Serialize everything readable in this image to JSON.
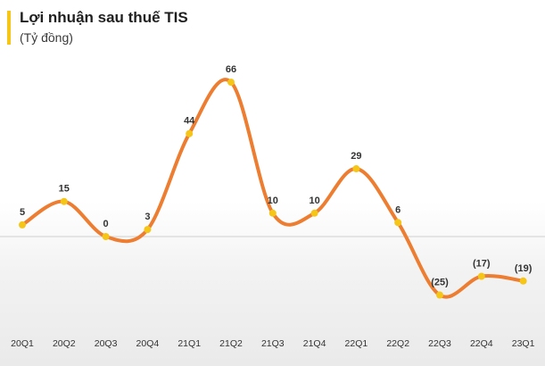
{
  "title": "Lợi nhuận sau thuế TIS",
  "subtitle": "(Tỷ đồng)",
  "colors": {
    "line": "#ED7D31",
    "marker": "#F5C518",
    "accent": "#F5C518",
    "zero_line": "#d0d0d0"
  },
  "chart_data": {
    "type": "line",
    "title": "Lợi nhuận sau thuế TIS",
    "ylabel": "(Tỷ đồng)",
    "xlabel": "",
    "categories": [
      "20Q1",
      "20Q2",
      "20Q3",
      "20Q4",
      "21Q1",
      "21Q2",
      "21Q3",
      "21Q4",
      "22Q1",
      "22Q2",
      "22Q3",
      "22Q4",
      "23Q1"
    ],
    "values": [
      5,
      15,
      0,
      3,
      44,
      66,
      10,
      10,
      29,
      6,
      -25,
      -17,
      -19
    ],
    "data_labels": [
      "5",
      "15",
      "0",
      "3",
      "44",
      "66",
      "10",
      "10",
      "29",
      "6",
      "(25)",
      "(17)",
      "(19)"
    ],
    "ylim": [
      -30,
      70
    ],
    "smooth": true,
    "grid": false,
    "legend": "none"
  }
}
